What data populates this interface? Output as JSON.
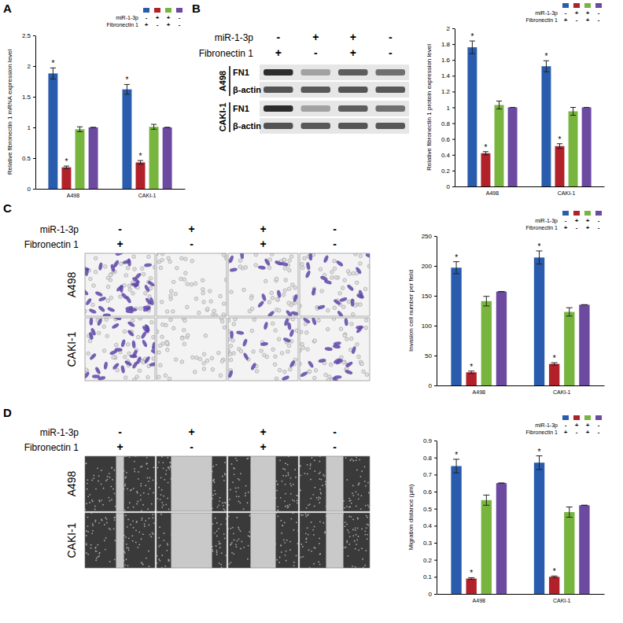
{
  "panel_labels": [
    "A",
    "B",
    "C",
    "D"
  ],
  "chart_data": [
    {
      "type": "bar",
      "y_label": "Relative fibronectin 1 mRNA expression level",
      "categories": [
        "A498",
        "CAKI-1"
      ],
      "series": [
        {
          "color": "#2a5cad",
          "values": [
            1.88,
            1.62
          ],
          "errors": [
            0.09,
            0.08
          ]
        },
        {
          "color": "#b2202a",
          "values": [
            0.35,
            0.43
          ],
          "errors": [
            0.02,
            0.03
          ]
        },
        {
          "color": "#78b53f",
          "values": [
            0.97,
            1.01
          ],
          "errors": [
            0.04,
            0.04
          ]
        },
        {
          "color": "#6b4aa0",
          "values": [
            1,
            1
          ],
          "errors": [
            0,
            0
          ]
        }
      ],
      "ylim": [
        0,
        2.5
      ],
      "yticks": [
        0,
        0.5,
        1,
        1.5,
        2,
        2.5
      ],
      "legend_table": {
        "rows": [
          {
            "label": "miR-1-3p",
            "signs": [
              "-",
              "+",
              "+",
              "-"
            ]
          },
          {
            "label": "Fibronectin 1",
            "signs": [
              "+",
              "-",
              "+",
              "-"
            ]
          }
        ]
      },
      "annotations": [
        {
          "text": "*",
          "series": 0,
          "category": 0
        },
        {
          "text": "*",
          "series": 1,
          "category": 0
        },
        {
          "text": "*",
          "series": 0,
          "category": 1
        },
        {
          "text": "*",
          "series": 1,
          "category": 1
        }
      ]
    },
    {
      "type": "bar",
      "y_label": "Relative fibronectin 1 protein expression level",
      "categories": [
        "A498",
        "CAKI-1"
      ],
      "series": [
        {
          "color": "#2a5cad",
          "values": [
            1.76,
            1.52
          ],
          "errors": [
            0.08,
            0.07
          ]
        },
        {
          "color": "#b2202a",
          "values": [
            0.42,
            0.51
          ],
          "errors": [
            0.02,
            0.03
          ]
        },
        {
          "color": "#78b53f",
          "values": [
            1.03,
            0.95
          ],
          "errors": [
            0.05,
            0.05
          ]
        },
        {
          "color": "#6b4aa0",
          "values": [
            1,
            1
          ],
          "errors": [
            0,
            0
          ]
        }
      ],
      "ylim": [
        0,
        2
      ],
      "yticks": [
        0,
        0.2,
        0.4,
        0.6,
        0.8,
        1,
        1.2,
        1.4,
        1.6,
        1.8,
        2
      ],
      "legend_table": {
        "rows": [
          {
            "label": "miR-1-3p",
            "signs": [
              "-",
              "+",
              "+",
              "-"
            ]
          },
          {
            "label": "Fibronectin 1",
            "signs": [
              "+",
              "-",
              "+",
              "-"
            ]
          }
        ]
      },
      "annotations": [
        {
          "text": "*",
          "series": 0,
          "category": 0
        },
        {
          "text": "*",
          "series": 1,
          "category": 0
        },
        {
          "text": "*",
          "series": 0,
          "category": 1
        },
        {
          "text": "*",
          "series": 1,
          "category": 1
        }
      ]
    },
    {
      "type": "bar",
      "y_label": "Invasion cell number per field",
      "categories": [
        "A498",
        "CAKI-1"
      ],
      "series": [
        {
          "color": "#2a5cad",
          "values": [
            197,
            214
          ],
          "errors": [
            10,
            11
          ]
        },
        {
          "color": "#b2202a",
          "values": [
            22,
            36
          ],
          "errors": [
            2,
            2
          ]
        },
        {
          "color": "#78b53f",
          "values": [
            141,
            123
          ],
          "errors": [
            8,
            7
          ]
        },
        {
          "color": "#6b4aa0",
          "values": [
            157,
            135
          ],
          "errors": [
            0,
            0
          ]
        }
      ],
      "ylim": [
        0,
        250
      ],
      "yticks": [
        0,
        50,
        100,
        150,
        200,
        250
      ],
      "legend_table": {
        "rows": [
          {
            "label": "miR-1-3p",
            "signs": [
              "-",
              "+",
              "+",
              "-"
            ]
          },
          {
            "label": "Fibronectin 1",
            "signs": [
              "+",
              "-",
              "+",
              "-"
            ]
          }
        ]
      },
      "annotations": [
        {
          "text": "*",
          "series": 0,
          "category": 0
        },
        {
          "text": "*",
          "series": 1,
          "category": 0
        },
        {
          "text": "*",
          "series": 0,
          "category": 1
        },
        {
          "text": "*",
          "series": 1,
          "category": 1
        }
      ]
    },
    {
      "type": "bar",
      "y_label": "Migration distance (μm)",
      "categories": [
        "A498",
        "CAKI-1"
      ],
      "series": [
        {
          "color": "#2a5cad",
          "values": [
            0.75,
            0.77
          ],
          "errors": [
            0.04,
            0.04
          ]
        },
        {
          "color": "#b2202a",
          "values": [
            0.09,
            0.1
          ],
          "errors": [
            0.005,
            0.005
          ]
        },
        {
          "color": "#78b53f",
          "values": [
            0.55,
            0.48
          ],
          "errors": [
            0.03,
            0.03
          ]
        },
        {
          "color": "#6b4aa0",
          "values": [
            0.65,
            0.52
          ],
          "errors": [
            0,
            0
          ]
        }
      ],
      "ylim": [
        0,
        0.9
      ],
      "yticks": [
        0,
        0.1,
        0.2,
        0.3,
        0.4,
        0.5,
        0.6,
        0.7,
        0.8,
        0.9
      ],
      "legend_table": {
        "rows": [
          {
            "label": "miR-1-3p",
            "signs": [
              "-",
              "+",
              "+",
              "-"
            ]
          },
          {
            "label": "Fibronectin 1",
            "signs": [
              "+",
              "-",
              "+",
              "-"
            ]
          }
        ]
      },
      "annotations": [
        {
          "text": "*",
          "series": 0,
          "category": 0
        },
        {
          "text": "*",
          "series": 1,
          "category": 0
        },
        {
          "text": "*",
          "series": 0,
          "category": 1
        },
        {
          "text": "*",
          "series": 1,
          "category": 1
        }
      ]
    }
  ],
  "image_panels": [
    {
      "type": "western_blot",
      "conditions": [
        {
          "label": "miR-1-3p",
          "signs": [
            "-",
            "+",
            "+",
            "-"
          ]
        },
        {
          "label": "Fibronectin 1",
          "signs": [
            "+",
            "-",
            "+",
            "-"
          ]
        }
      ],
      "rows": [
        {
          "label": "A498",
          "bands": [
            "FN1",
            "β-actin"
          ]
        },
        {
          "label": "CAKI-1",
          "bands": [
            "FN1",
            "β-actin"
          ]
        }
      ]
    },
    {
      "type": "transwell",
      "conditions": [
        {
          "label": "miR-1-3p",
          "signs": [
            "-",
            "+",
            "+",
            "-"
          ]
        },
        {
          "label": "Fibronectin 1",
          "signs": [
            "+",
            "-",
            "+",
            "-"
          ]
        }
      ],
      "rows": [
        "A498",
        "CAKI-1"
      ]
    },
    {
      "type": "wound_healing",
      "conditions": [
        {
          "label": "miR-1-3p",
          "signs": [
            "-",
            "+",
            "+",
            "-"
          ]
        },
        {
          "label": "Fibronectin 1",
          "signs": [
            "+",
            "-",
            "+",
            "-"
          ]
        }
      ],
      "rows": [
        "A498",
        "CAKI-1"
      ]
    }
  ]
}
